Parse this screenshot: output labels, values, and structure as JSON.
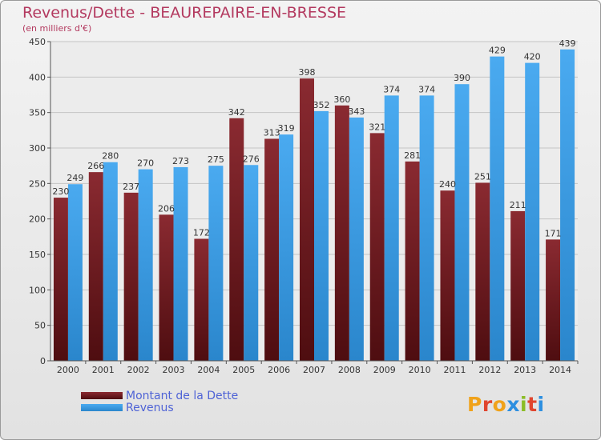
{
  "title": "Revenus/Dette - BEAUREPAIRE-EN-BRESSE",
  "subtitle": "(en milliers d'€)",
  "logo": "Proxiti",
  "colors": {
    "dette": "#7a1e24",
    "revenus": "#3e9ee6",
    "title": "#b3395f",
    "legend_text": "#4f63d6"
  },
  "chart_data": {
    "type": "bar",
    "categories": [
      "2000",
      "2001",
      "2002",
      "2003",
      "2004",
      "2005",
      "2006",
      "2007",
      "2008",
      "2009",
      "2010",
      "2011",
      "2012",
      "2013",
      "2014"
    ],
    "series": [
      {
        "name": "Montant de la Dette",
        "values": [
          230,
          266,
          237,
          206,
          172,
          342,
          313,
          398,
          360,
          321,
          281,
          240,
          251,
          211,
          171
        ]
      },
      {
        "name": "Revenus",
        "values": [
          249,
          280,
          270,
          273,
          275,
          276,
          319,
          352,
          343,
          374,
          374,
          390,
          429,
          420,
          439
        ]
      }
    ],
    "ylim": [
      0,
      450
    ],
    "yticks": [
      0,
      50,
      100,
      150,
      200,
      250,
      300,
      350,
      400,
      450
    ],
    "grid": true,
    "legend": "bottom-left"
  }
}
